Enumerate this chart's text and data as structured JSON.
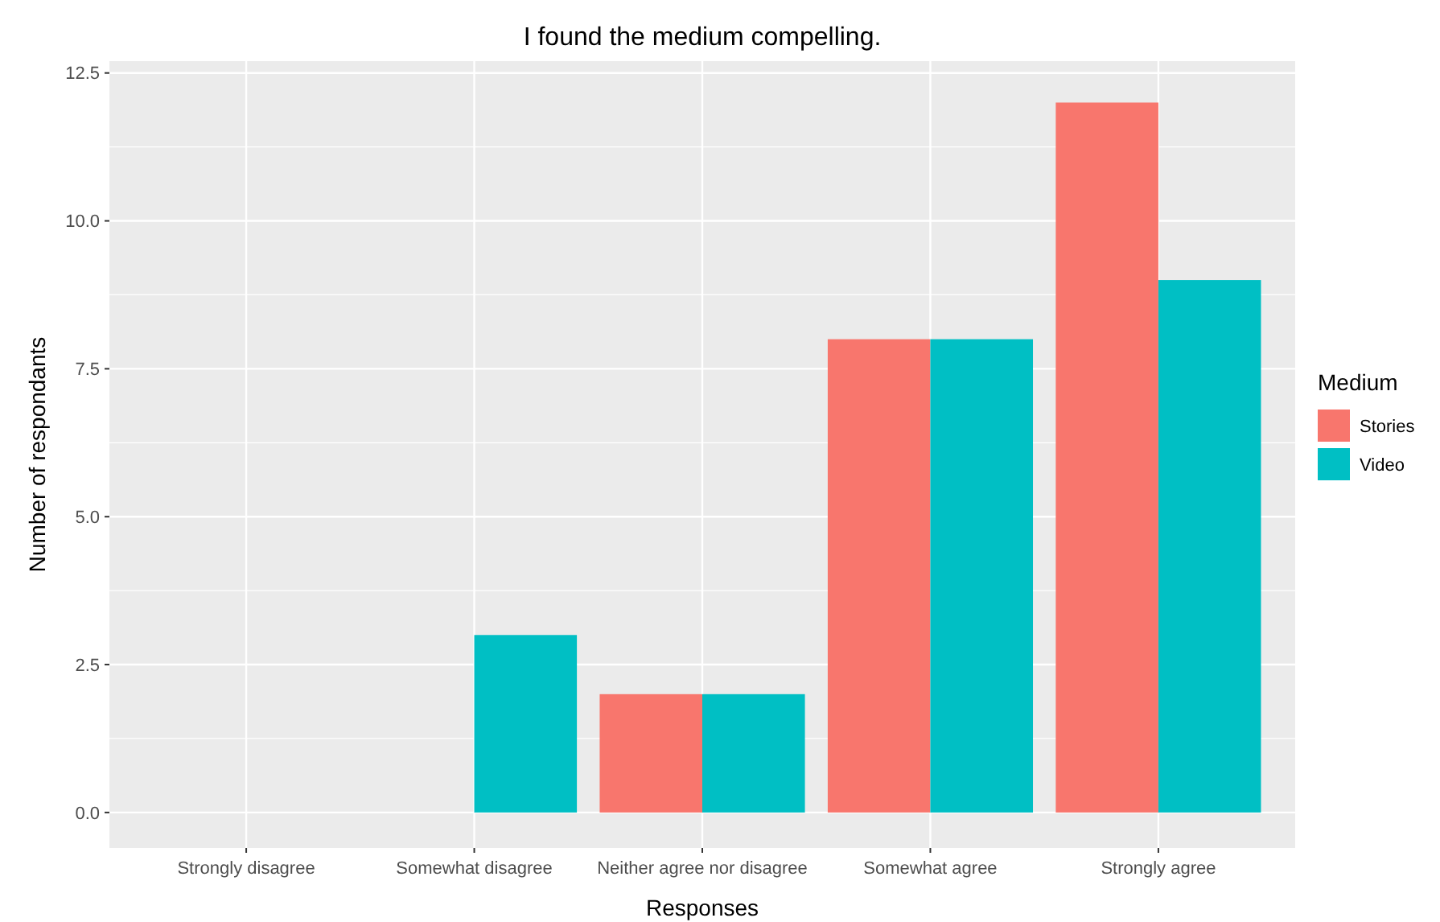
{
  "chart_data": {
    "type": "bar",
    "title": "I found the medium compelling.",
    "xlabel": "Responses",
    "ylabel": "Number of respondants",
    "legend_title": "Medium",
    "categories": [
      "Strongly disagree",
      "Somewhat disagree",
      "Neither agree nor disagree",
      "Somewhat agree",
      "Strongly agree"
    ],
    "series": [
      {
        "name": "Stories",
        "color": "#f8766d",
        "values": [
          0,
          0,
          2,
          8,
          12
        ]
      },
      {
        "name": "Video",
        "color": "#00bfc4",
        "values": [
          0,
          3,
          2,
          8,
          9
        ]
      }
    ],
    "ylim": [
      -0.6,
      12.7
    ],
    "yticks": [
      {
        "value": 0,
        "label": "0.0"
      },
      {
        "value": 2.5,
        "label": "2.5"
      },
      {
        "value": 5,
        "label": "5.0"
      },
      {
        "value": 7.5,
        "label": "7.5"
      },
      {
        "value": 10,
        "label": "10.0"
      },
      {
        "value": 12.5,
        "label": "12.5"
      }
    ],
    "grid": true,
    "legend": "right"
  }
}
